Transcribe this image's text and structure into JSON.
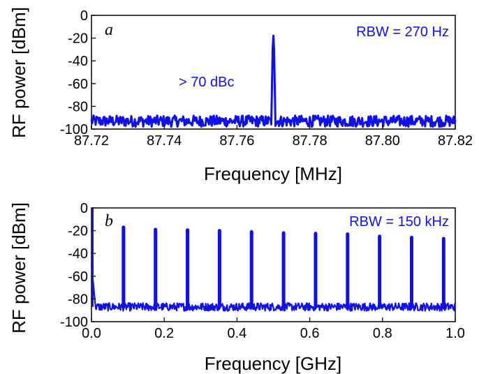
{
  "colors": {
    "trace": "#1010ee",
    "axis": "#000000",
    "background": "#ffffff"
  },
  "chart_data": [
    {
      "type": "line",
      "panel_label": "a",
      "xlabel": "Frequency [MHz]",
      "ylabel": "RF power [dBm]",
      "xlim": [
        87.72,
        87.82
      ],
      "ylim": [
        -100,
        0
      ],
      "x_ticks": [
        "87.72",
        "87.74",
        "87.76",
        "87.78",
        "87.80",
        "87.82"
      ],
      "y_ticks": [
        "0",
        "-20",
        "-40",
        "-60",
        "-80",
        "-100"
      ],
      "annotations": {
        "rbw": "RBW = 270 Hz",
        "dynamic_range": "> 70 dBc"
      },
      "grid": false,
      "noise_floor_dBm": -93,
      "peak": {
        "x": 87.77,
        "y": -18,
        "width": 0.0005
      }
    },
    {
      "type": "line",
      "panel_label": "b",
      "xlabel": "Frequency [GHz]",
      "ylabel": "RF power [dBm]",
      "xlim": [
        0.0,
        1.0
      ],
      "ylim": [
        -100,
        0
      ],
      "x_ticks": [
        "0.0",
        "0.2",
        "0.4",
        "0.6",
        "0.8",
        "1.0"
      ],
      "y_ticks": [
        "0",
        "-20",
        "-40",
        "-60",
        "-80",
        "-100"
      ],
      "annotations": {
        "rbw": "RBW = 150 kHz"
      },
      "grid": false,
      "noise_floor_dBm": -87,
      "dc_peak": {
        "x": 0.0,
        "y": 0
      },
      "peaks": [
        {
          "x": 0.088,
          "y": -17
        },
        {
          "x": 0.176,
          "y": -19
        },
        {
          "x": 0.264,
          "y": -19.5
        },
        {
          "x": 0.352,
          "y": -20
        },
        {
          "x": 0.44,
          "y": -21
        },
        {
          "x": 0.528,
          "y": -22
        },
        {
          "x": 0.616,
          "y": -22.5
        },
        {
          "x": 0.704,
          "y": -23
        },
        {
          "x": 0.792,
          "y": -25
        },
        {
          "x": 0.88,
          "y": -26
        },
        {
          "x": 0.968,
          "y": -27
        }
      ]
    }
  ]
}
